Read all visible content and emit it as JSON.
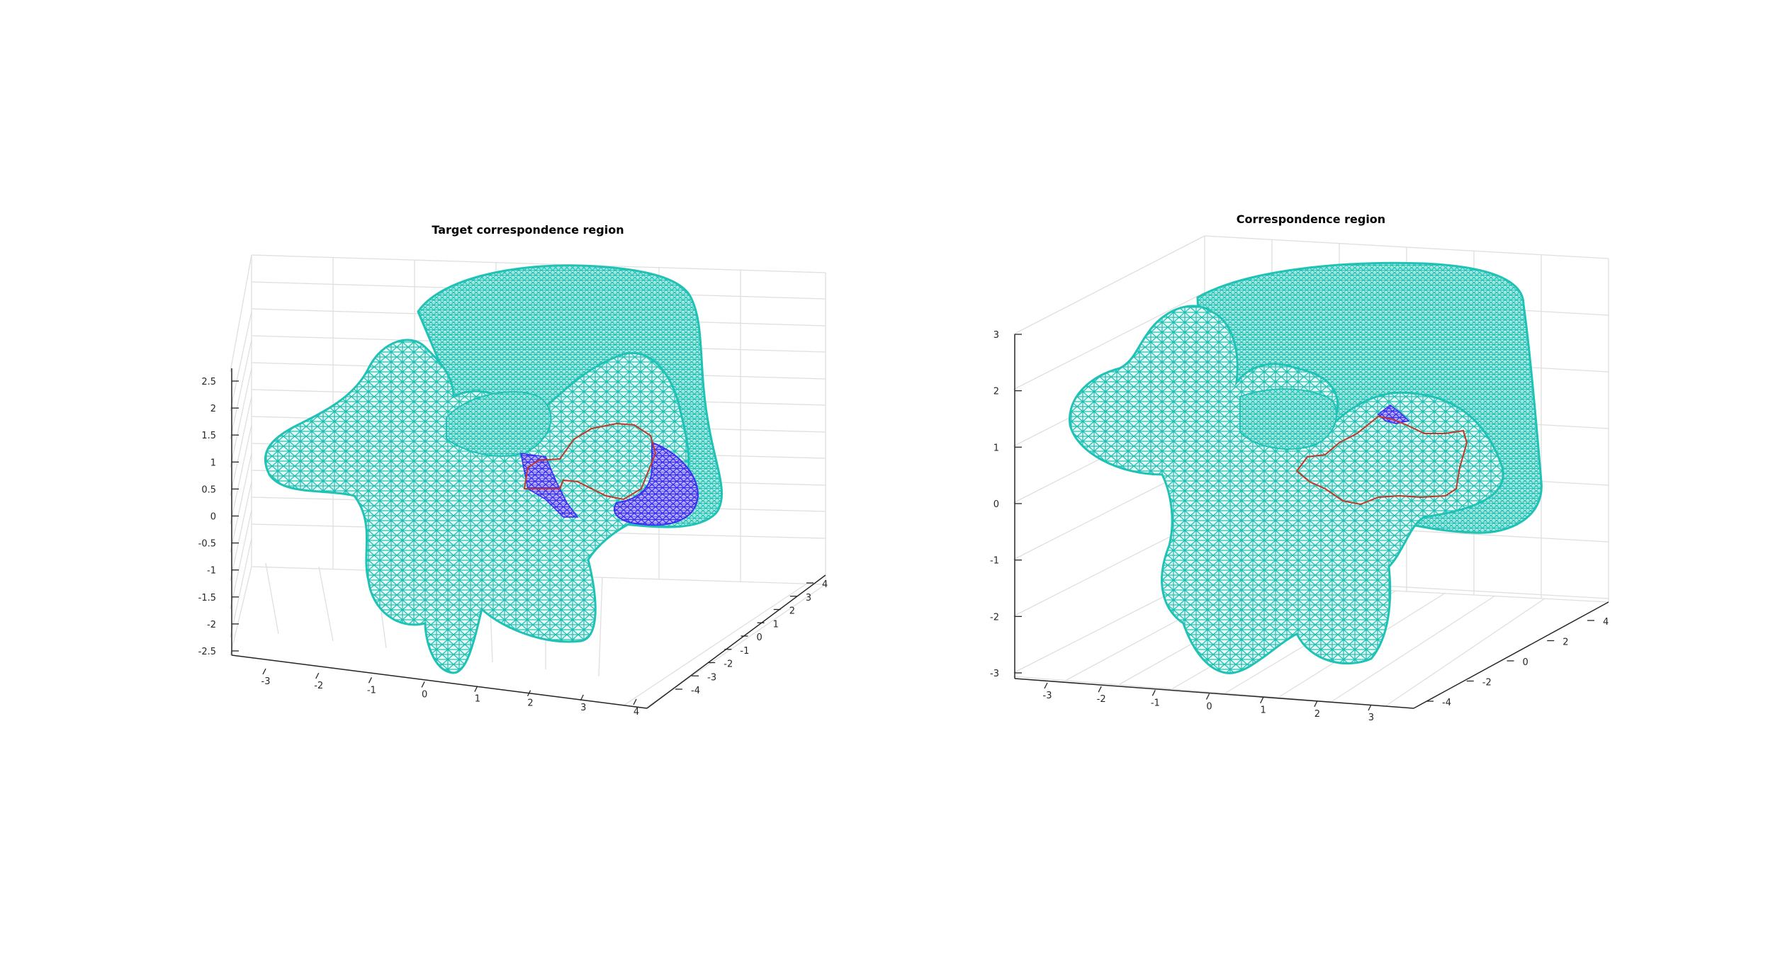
{
  "figure": {
    "background": "#ffffff",
    "axes_color": "#262626",
    "grid_color": "#dfdfdf",
    "mesh_color": "#1fc2b4",
    "mesh_edge_color": "#17b3a6",
    "region_color": "#4a3cf0",
    "boundary_color": "#c0392b"
  },
  "chart_data": [
    {
      "type": "3d-mesh",
      "title": "Target correspondence region",
      "xlabel": "",
      "ylabel": "",
      "zlabel": "",
      "grid": true,
      "x_ticks": [
        "-3",
        "-2",
        "-1",
        "0",
        "1",
        "2",
        "3",
        "4"
      ],
      "y_ticks": [
        "-4",
        "-3",
        "-2",
        "-1",
        "0",
        "1",
        "2",
        "3",
        "4"
      ],
      "z_ticks": [
        "-2.5",
        "-2",
        "-1.5",
        "-1",
        "-0.5",
        "0",
        "0.5",
        "1",
        "1.5",
        "2",
        "2.5"
      ],
      "xlim": [
        -3.5,
        4.2
      ],
      "ylim": [
        -4.5,
        4.5
      ],
      "zlim": [
        -2.6,
        2.8
      ],
      "series": [
        {
          "color": "#1fc2b4"
        },
        {
          "color": "#4a3cf0"
        },
        {
          "color": "#c0392b"
        }
      ]
    },
    {
      "type": "3d-mesh",
      "title": "Correspondence region",
      "xlabel": "",
      "ylabel": "",
      "zlabel": "",
      "grid": true,
      "x_ticks": [
        "-3",
        "-2",
        "-1",
        "0",
        "1",
        "2",
        "3"
      ],
      "y_ticks": [
        "-4",
        "-2",
        "0",
        "2",
        "4"
      ],
      "z_ticks": [
        "-3",
        "-2",
        "-1",
        "0",
        "1",
        "2",
        "3"
      ],
      "xlim": [
        -3.5,
        3.5
      ],
      "ylim": [
        -5,
        5
      ],
      "zlim": [
        -3.2,
        3.3
      ],
      "series": [
        {
          "color": "#1fc2b4"
        },
        {
          "color": "#4a3cf0"
        },
        {
          "color": "#c0392b"
        }
      ]
    }
  ]
}
